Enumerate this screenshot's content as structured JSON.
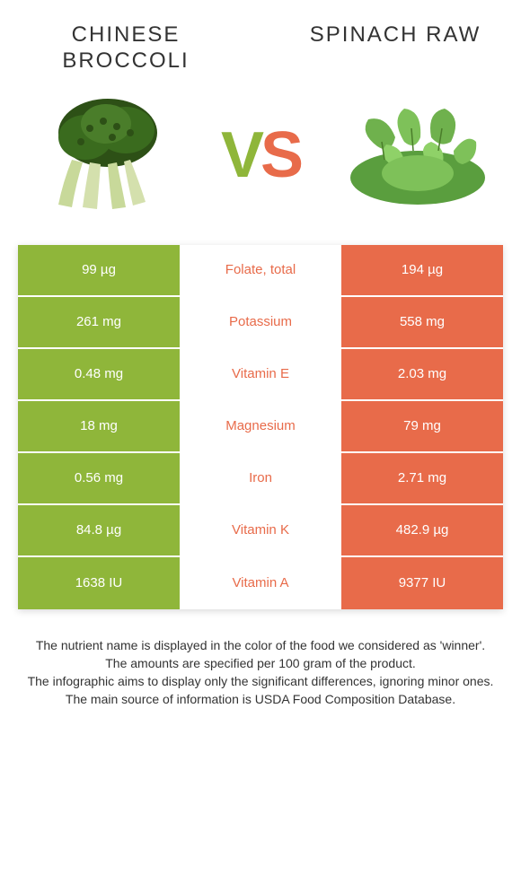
{
  "colors": {
    "left": "#8fb63a",
    "right": "#e86b4a",
    "text": "#333333",
    "white": "#ffffff"
  },
  "header": {
    "left_title": "Chinese broccoli",
    "right_title": "Spinach raw"
  },
  "vs": {
    "v": "V",
    "s": "S"
  },
  "rows": [
    {
      "left": "99 µg",
      "mid": "Folate, total",
      "right": "194 µg",
      "winner": "right"
    },
    {
      "left": "261 mg",
      "mid": "Potassium",
      "right": "558 mg",
      "winner": "right"
    },
    {
      "left": "0.48 mg",
      "mid": "Vitamin E",
      "right": "2.03 mg",
      "winner": "right"
    },
    {
      "left": "18 mg",
      "mid": "Magnesium",
      "right": "79 mg",
      "winner": "right"
    },
    {
      "left": "0.56 mg",
      "mid": "Iron",
      "right": "2.71 mg",
      "winner": "right"
    },
    {
      "left": "84.8 µg",
      "mid": "Vitamin K",
      "right": "482.9 µg",
      "winner": "right"
    },
    {
      "left": "1638 IU",
      "mid": "Vitamin A",
      "right": "9377 IU",
      "winner": "right"
    }
  ],
  "footer": {
    "line1": "The nutrient name is displayed in the color of the food we considered as 'winner'.",
    "line2": "The amounts are specified per 100 gram of the product.",
    "line3": "The infographic aims to display only the significant differences, ignoring minor ones.",
    "line4": "The main source of information is USDA Food Composition Database."
  }
}
